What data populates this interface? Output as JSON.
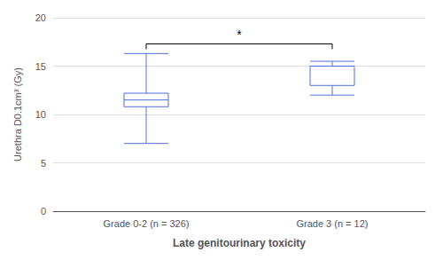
{
  "chart_data": {
    "type": "box",
    "categories": [
      "Grade 0-2 (n = 326)",
      "Grade 3 (n = 12)"
    ],
    "boxes": [
      {
        "whisker_low": 7.0,
        "q1": 10.8,
        "median": 11.5,
        "q3": 12.2,
        "whisker_high": 16.3
      },
      {
        "whisker_low": 12.0,
        "q1": 13.0,
        "median": 15.0,
        "q3": 15.0,
        "whisker_high": 15.5
      }
    ],
    "ylabel": "Urethra D0.1cm³ (Gy)",
    "xlabel": "Late genitourinary toxicity",
    "ylim": [
      0,
      20
    ],
    "yticks": [
      0,
      5,
      10,
      15,
      20
    ],
    "grid": true,
    "annotations": [
      {
        "text": "*",
        "y": 17.6,
        "bracket_y": 17.3,
        "from": "Grade 0-2 (n = 326)",
        "to": "Grade 3 (n = 12)"
      }
    ]
  }
}
